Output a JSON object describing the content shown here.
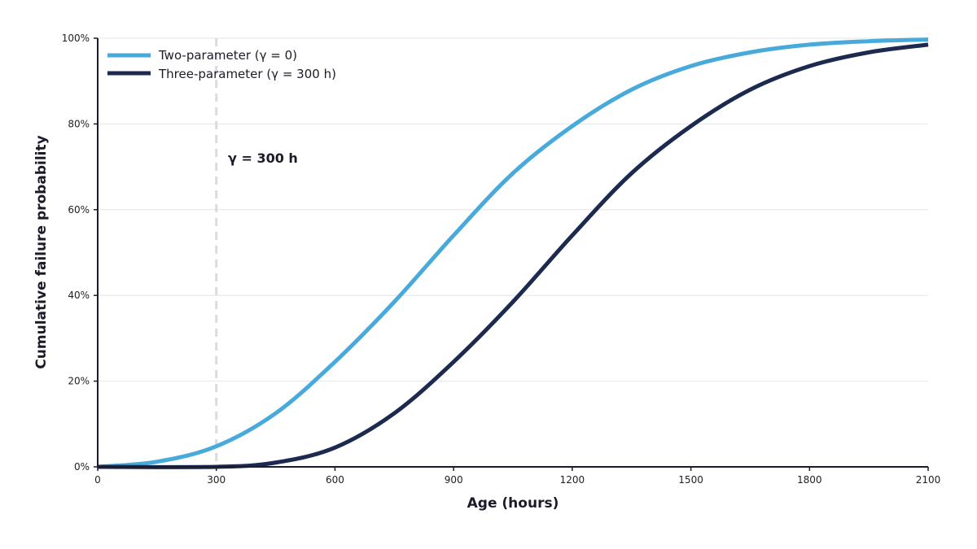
{
  "chart_data": {
    "type": "line",
    "title": "",
    "xlabel": "Age (hours)",
    "ylabel": "Cumulative failure probability",
    "xlim": [
      0,
      2100
    ],
    "ylim": [
      0,
      1
    ],
    "x_ticks": [
      0,
      300,
      600,
      900,
      1200,
      1500,
      1800,
      2100
    ],
    "x_tick_labels": [
      "0",
      "300",
      "600",
      "900",
      "1200",
      "1500",
      "1800",
      "2100"
    ],
    "y_ticks": [
      0,
      0.2,
      0.4,
      0.6,
      0.8,
      1.0
    ],
    "y_tick_labels": [
      "0%",
      "20%",
      "40%",
      "60%",
      "80%",
      "100%"
    ],
    "grid": "horizontal",
    "legend_position": "top-left",
    "series": [
      {
        "name": "Two-parameter (γ = 0)",
        "color": "#48aadb",
        "x": [
          0,
          150,
          300,
          450,
          600,
          750,
          900,
          1050,
          1200,
          1350,
          1500,
          1650,
          1800,
          1950,
          2100
        ],
        "y": [
          0.0,
          0.012,
          0.048,
          0.125,
          0.245,
          0.385,
          0.54,
          0.685,
          0.795,
          0.88,
          0.935,
          0.967,
          0.985,
          0.993,
          0.997
        ]
      },
      {
        "name": "Three-parameter (γ = 300 h)",
        "color": "#1b2a4e",
        "x": [
          0,
          300,
          450,
          600,
          750,
          900,
          1050,
          1200,
          1350,
          1500,
          1650,
          1800,
          1950,
          2100
        ],
        "y": [
          0,
          0,
          0.01,
          0.045,
          0.125,
          0.245,
          0.385,
          0.54,
          0.685,
          0.795,
          0.88,
          0.935,
          0.967,
          0.985
        ]
      }
    ],
    "annotations": [
      {
        "type": "vline",
        "x": 300,
        "color": "#d8dce2"
      },
      {
        "type": "text",
        "text": "γ = 300 h",
        "x": 300,
        "y": 0.72
      }
    ]
  }
}
